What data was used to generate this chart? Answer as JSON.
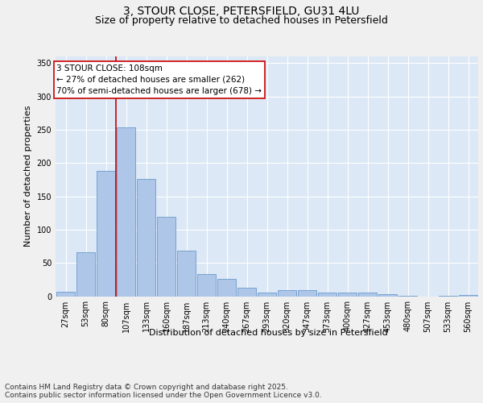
{
  "title_line1": "3, STOUR CLOSE, PETERSFIELD, GU31 4LU",
  "title_line2": "Size of property relative to detached houses in Petersfield",
  "xlabel": "Distribution of detached houses by size in Petersfield",
  "ylabel": "Number of detached properties",
  "categories": [
    "27sqm",
    "53sqm",
    "80sqm",
    "107sqm",
    "133sqm",
    "160sqm",
    "187sqm",
    "213sqm",
    "240sqm",
    "267sqm",
    "293sqm",
    "320sqm",
    "347sqm",
    "373sqm",
    "400sqm",
    "427sqm",
    "453sqm",
    "480sqm",
    "507sqm",
    "533sqm",
    "560sqm"
  ],
  "values": [
    7,
    66,
    188,
    254,
    176,
    119,
    68,
    33,
    26,
    13,
    5,
    9,
    9,
    5,
    5,
    5,
    3,
    1,
    0,
    1,
    2
  ],
  "bar_color": "#aec6e8",
  "bar_edge_color": "#5b8ec4",
  "background_color": "#dce8f5",
  "grid_color": "#ffffff",
  "vline_color": "#cc0000",
  "annotation_text": "3 STOUR CLOSE: 108sqm\n← 27% of detached houses are smaller (262)\n70% of semi-detached houses are larger (678) →",
  "annotation_box_color": "#cc0000",
  "ylim": [
    0,
    360
  ],
  "yticks": [
    0,
    50,
    100,
    150,
    200,
    250,
    300,
    350
  ],
  "footer_text": "Contains HM Land Registry data © Crown copyright and database right 2025.\nContains public sector information licensed under the Open Government Licence v3.0.",
  "title_fontsize": 10,
  "subtitle_fontsize": 9,
  "axis_label_fontsize": 8,
  "tick_fontsize": 7,
  "footer_fontsize": 6.5,
  "annotation_fontsize": 7.5
}
